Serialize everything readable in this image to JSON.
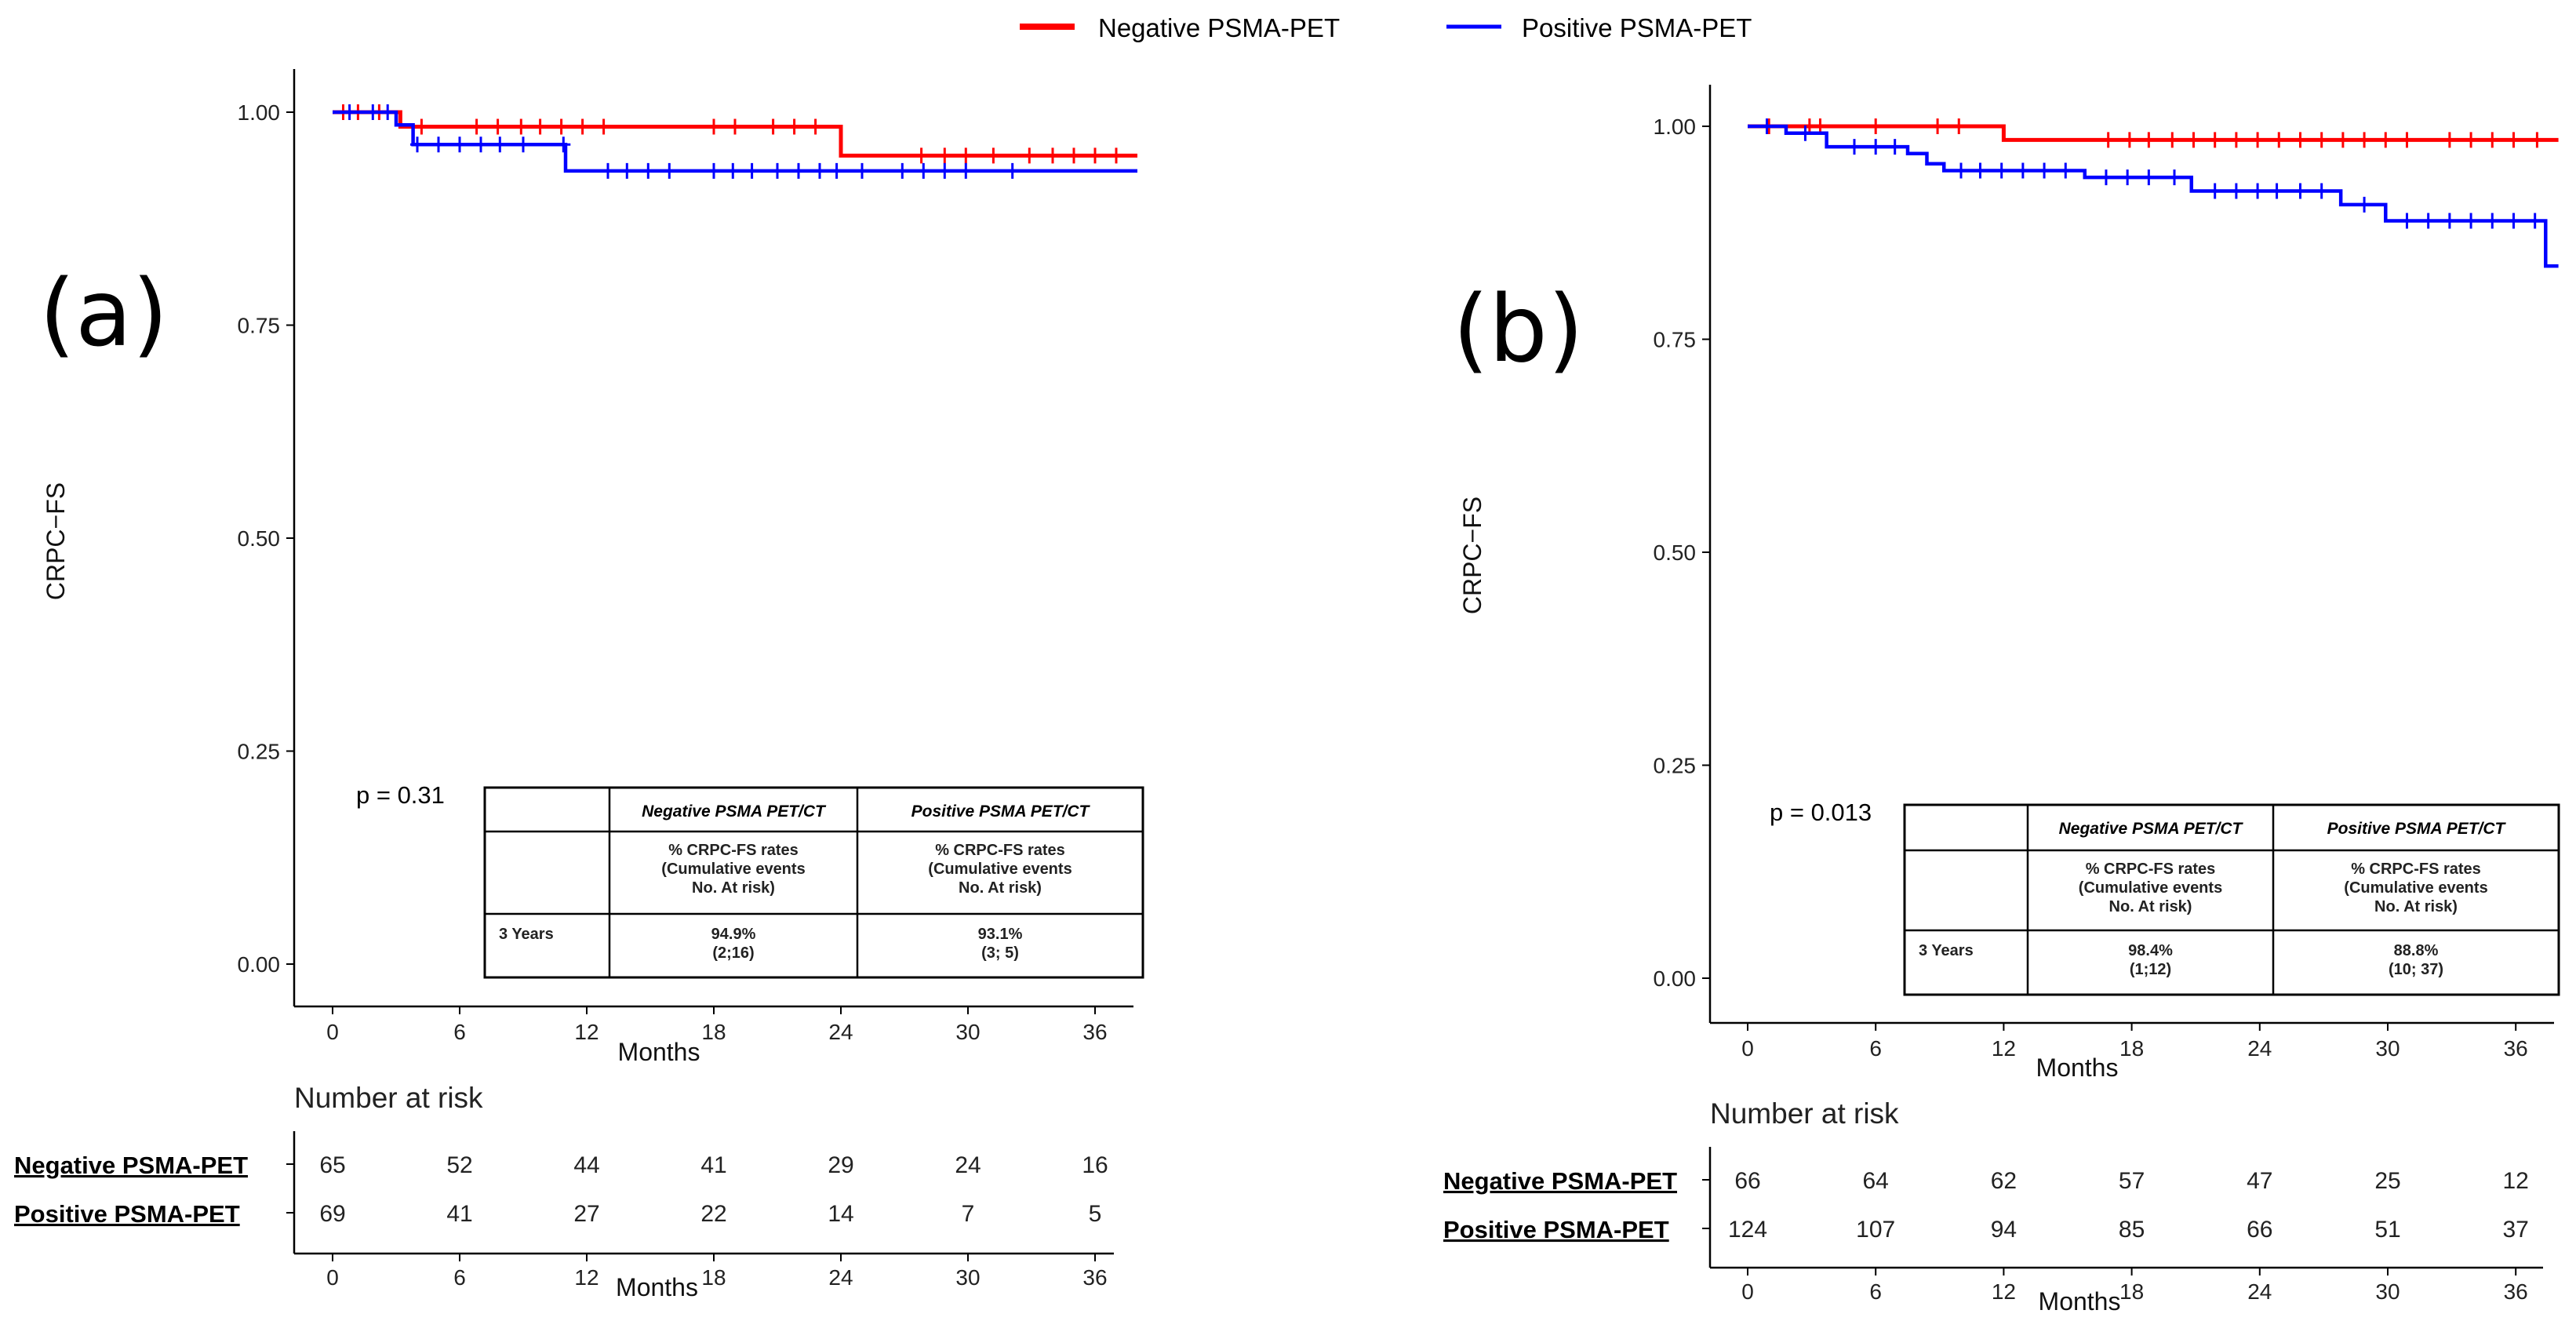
{
  "legend": {
    "items": [
      {
        "name": "Negative PSMA-PET",
        "color": "#ff0000"
      },
      {
        "name": "Positive PSMA-PET",
        "color": "#0000ff"
      }
    ]
  },
  "chart_data": [
    {
      "type": "line",
      "subtype": "kaplan-meier",
      "panel_label": "(a)",
      "ylabel": "CRPC−FS",
      "xlabel": "Months",
      "xlim": [
        0,
        38
      ],
      "ylim": [
        0,
        1.05
      ],
      "xticks": [
        0,
        6,
        12,
        18,
        24,
        30,
        36
      ],
      "yticks": [
        "0.00",
        "0.25",
        "0.50",
        "0.75",
        "1.00"
      ],
      "pvalue": "p = 0.31",
      "series": [
        {
          "name": "Negative PSMA-PET",
          "color": "#ff0000",
          "steps": [
            [
              0,
              1.0
            ],
            [
              3.2,
              0.983
            ],
            [
              24,
              0.949
            ],
            [
              38,
              0.949
            ]
          ],
          "censors": [
            0.5,
            1.2,
            2.2,
            4.2,
            6.8,
            7.8,
            8.9,
            9.8,
            10.8,
            11.8,
            12.8,
            18.0,
            19.0,
            20.8,
            21.8,
            22.8,
            27.8,
            28.9,
            29.9,
            31.2,
            32.9,
            34.0,
            35.0,
            36.0,
            37.0
          ]
        },
        {
          "name": "Positive PSMA-PET",
          "color": "#0000ff",
          "steps": [
            [
              0,
              1.0
            ],
            [
              3.0,
              0.985
            ],
            [
              3.8,
              0.962
            ],
            [
              11.0,
              0.931
            ],
            [
              38,
              0.931
            ]
          ],
          "censors": [
            0.8,
            1.9,
            2.6,
            4.0,
            5.0,
            6.0,
            7.0,
            7.9,
            9.0,
            10.9,
            13.0,
            13.9,
            14.9,
            15.9,
            18.0,
            18.9,
            19.8,
            21.0,
            22.0,
            23.0,
            23.8,
            25.0,
            26.9,
            27.9,
            28.9,
            29.9,
            32.1
          ]
        }
      ],
      "summary_table": {
        "headers": [
          "",
          "Negative PSMA PET/CT",
          "Positive PSMA PET/CT"
        ],
        "subheader": [
          "",
          "% CRPC-FS rates\n(Cumulative events\nNo. At risk)",
          "% CRPC-FS rates\n(Cumulative events\nNo. At risk)"
        ],
        "rows": [
          [
            "3 Years",
            "94.9%\n(2;16)",
            "93.1%\n(3; 5)"
          ]
        ]
      },
      "risk_table": {
        "title": "Number at risk",
        "xlabel": "Months",
        "times": [
          0,
          6,
          12,
          18,
          24,
          30,
          36
        ],
        "rows": [
          {
            "label": "Negative PSMA-PET",
            "values": [
              65,
              52,
              44,
              41,
              29,
              24,
              16
            ]
          },
          {
            "label": "Positive PSMA-PET",
            "values": [
              69,
              41,
              27,
              22,
              14,
              7,
              5
            ]
          }
        ]
      }
    },
    {
      "type": "line",
      "subtype": "kaplan-meier",
      "panel_label": "(b)",
      "ylabel": "CRPC−FS",
      "xlabel": "Months",
      "xlim": [
        0,
        38
      ],
      "ylim": [
        0,
        1.05
      ],
      "xticks": [
        0,
        6,
        12,
        18,
        24,
        30,
        36
      ],
      "yticks": [
        "0.00",
        "0.25",
        "0.50",
        "0.75",
        "1.00"
      ],
      "pvalue": "p = 0.013",
      "series": [
        {
          "name": "Negative PSMA-PET",
          "color": "#ff0000",
          "steps": [
            [
              0,
              1.0
            ],
            [
              12.0,
              0.984
            ],
            [
              38,
              0.984
            ]
          ],
          "censors": [
            1.0,
            2.9,
            3.4,
            6.0,
            8.9,
            9.9,
            16.9,
            17.9,
            18.8,
            19.9,
            20.9,
            21.9,
            22.9,
            23.9,
            24.9,
            25.9,
            26.9,
            27.9,
            28.9,
            29.9,
            30.9,
            32.9,
            33.9,
            34.9,
            35.9,
            37.0
          ]
        },
        {
          "name": "Positive PSMA-PET",
          "color": "#0000ff",
          "steps": [
            [
              0,
              1.0
            ],
            [
              1.8,
              0.992
            ],
            [
              3.7,
              0.976
            ],
            [
              7.5,
              0.968
            ],
            [
              8.4,
              0.956
            ],
            [
              9.2,
              0.948
            ],
            [
              15.8,
              0.94
            ],
            [
              20.8,
              0.924
            ],
            [
              27.8,
              0.908
            ],
            [
              29.9,
              0.889
            ],
            [
              37.4,
              0.836
            ],
            [
              38,
              0.836
            ]
          ],
          "censors": [
            0.9,
            2.7,
            5.0,
            6.0,
            6.9,
            10.0,
            10.9,
            11.9,
            12.9,
            13.9,
            14.9,
            16.8,
            17.8,
            18.8,
            20.0,
            21.9,
            22.9,
            23.9,
            24.8,
            25.9,
            26.9,
            28.9,
            30.9,
            31.9,
            32.9,
            33.9,
            34.9,
            35.9,
            36.9
          ]
        }
      ],
      "summary_table": {
        "headers": [
          "",
          "Negative PSMA PET/CT",
          "Positive PSMA PET/CT"
        ],
        "subheader": [
          "",
          "% CRPC-FS rates\n(Cumulative events\nNo. At risk)",
          "% CRPC-FS rates\n(Cumulative events\nNo. At risk)"
        ],
        "rows": [
          [
            "3 Years",
            "98.4%\n(1;12)",
            "88.8%\n(10; 37)"
          ]
        ]
      },
      "risk_table": {
        "title": "Number at risk",
        "xlabel": "Months",
        "times": [
          0,
          6,
          12,
          18,
          24,
          30,
          36
        ],
        "rows": [
          {
            "label": "Negative PSMA-PET",
            "values": [
              66,
              64,
              62,
              57,
              47,
              25,
              12
            ]
          },
          {
            "label": "Positive PSMA-PET",
            "values": [
              124,
              107,
              94,
              85,
              66,
              51,
              37
            ]
          }
        ]
      }
    }
  ]
}
